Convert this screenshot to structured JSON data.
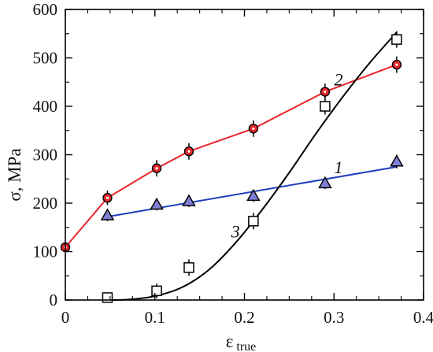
{
  "chart_data": {
    "type": "scatter",
    "xlabel_main": "ε",
    "xlabel_sub": "true",
    "ylabel": "σ, MPa",
    "xlim": [
      0,
      0.4
    ],
    "ylim": [
      0,
      600
    ],
    "xticks": [
      0,
      0.1,
      0.2,
      0.3,
      0.4
    ],
    "xtick_labels": [
      "0",
      "0.1",
      "0.2",
      "0.3",
      "0.4"
    ],
    "yticks": [
      0,
      100,
      200,
      300,
      400,
      500,
      600
    ],
    "ytick_labels": [
      "0",
      "100",
      "200",
      "300",
      "400",
      "500",
      "600"
    ],
    "grid": false,
    "series": [
      {
        "id": "1",
        "label": "1",
        "marker": "triangle",
        "line_color": "#1f3fbf",
        "marker_fill": "#7f7fd6",
        "points": [
          {
            "x": 0.047,
            "y": 175,
            "err": 12
          },
          {
            "x": 0.102,
            "y": 197,
            "err": 12
          },
          {
            "x": 0.138,
            "y": 204,
            "err": 12
          },
          {
            "x": 0.21,
            "y": 215,
            "err": 12
          },
          {
            "x": 0.29,
            "y": 241,
            "err": 12
          },
          {
            "x": 0.37,
            "y": 286,
            "err": 14
          }
        ],
        "fit": [
          [
            0.047,
            172
          ],
          [
            0.37,
            275
          ]
        ]
      },
      {
        "id": "2",
        "label": "2",
        "marker": "circle",
        "line_color": "#e8262b",
        "marker_fill": "#e8262b",
        "points": [
          {
            "x": 0.0,
            "y": 109,
            "err": 0
          },
          {
            "x": 0.047,
            "y": 211,
            "err": 15
          },
          {
            "x": 0.102,
            "y": 272,
            "err": 17
          },
          {
            "x": 0.138,
            "y": 307,
            "err": 17
          },
          {
            "x": 0.21,
            "y": 354,
            "err": 17
          },
          {
            "x": 0.29,
            "y": 430,
            "err": 17
          },
          {
            "x": 0.37,
            "y": 486,
            "err": 17
          }
        ],
        "fit": [
          [
            0.0,
            109
          ],
          [
            0.047,
            211
          ],
          [
            0.102,
            272
          ],
          [
            0.138,
            307
          ],
          [
            0.21,
            354
          ],
          [
            0.29,
            430
          ],
          [
            0.37,
            486
          ]
        ]
      },
      {
        "id": "3",
        "label": "3",
        "marker": "square",
        "line_color": "#000000",
        "marker_fill": "#ffffff",
        "points": [
          {
            "x": 0.047,
            "y": 5,
            "err": 8
          },
          {
            "x": 0.102,
            "y": 19,
            "err": 15
          },
          {
            "x": 0.138,
            "y": 67,
            "err": 17
          },
          {
            "x": 0.21,
            "y": 163,
            "err": 17
          },
          {
            "x": 0.29,
            "y": 400,
            "err": 17
          },
          {
            "x": 0.37,
            "y": 538,
            "err": 17
          }
        ],
        "fit": [
          [
            0.047,
            0
          ],
          [
            0.07,
            1
          ],
          [
            0.1,
            8
          ],
          [
            0.13,
            26
          ],
          [
            0.16,
            62
          ],
          [
            0.19,
            118
          ],
          [
            0.22,
            187
          ],
          [
            0.25,
            263
          ],
          [
            0.28,
            344
          ],
          [
            0.31,
            420
          ],
          [
            0.34,
            490
          ],
          [
            0.37,
            553
          ]
        ]
      }
    ],
    "curve_labels": [
      {
        "series": "1",
        "text": "1",
        "x": 0.305,
        "y": 262
      },
      {
        "series": "2",
        "text": "2",
        "x": 0.305,
        "y": 443
      },
      {
        "series": "3",
        "text": "3",
        "x": 0.19,
        "y": 129
      }
    ]
  }
}
